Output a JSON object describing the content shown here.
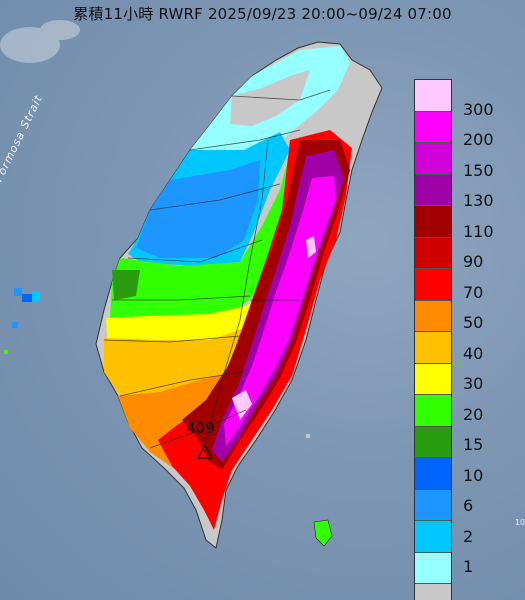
{
  "title": "累積11小時 RWRF 2025/09/23 20:00~09/24 07:00",
  "strait_label": "Formosa Strait",
  "peak_value": "409",
  "edge_label": "10",
  "legend": {
    "labels": [
      "300",
      "200",
      "150",
      "130",
      "110",
      "90",
      "70",
      "50",
      "40",
      "30",
      "20",
      "15",
      "10",
      "6",
      "2",
      "1"
    ],
    "colors": [
      "#ffc8ff",
      "#ff00ff",
      "#d000d8",
      "#a000a8",
      "#a00000",
      "#d00000",
      "#ff0000",
      "#ff8c00",
      "#ffc000",
      "#ffff00",
      "#32ff00",
      "#2a9c10",
      "#0064ff",
      "#1e96ff",
      "#00c8ff",
      "#96ffff",
      "#c8c8c8"
    ]
  },
  "colors": {
    "sea": "#7d96b3",
    "land_gray": "#c8c8c8",
    "cyan": "#96ffff",
    "light_blue": "#00c8ff",
    "blue": "#1e96ff",
    "green": "#32ff00",
    "dark_green": "#2a9c10",
    "yellow": "#ffff00",
    "gold": "#ffc000",
    "orange": "#ff8c00",
    "red": "#ff0000",
    "dark_red": "#a00000",
    "purple": "#a000a8",
    "magenta": "#ff00ff",
    "pink": "#ffc8ff"
  }
}
